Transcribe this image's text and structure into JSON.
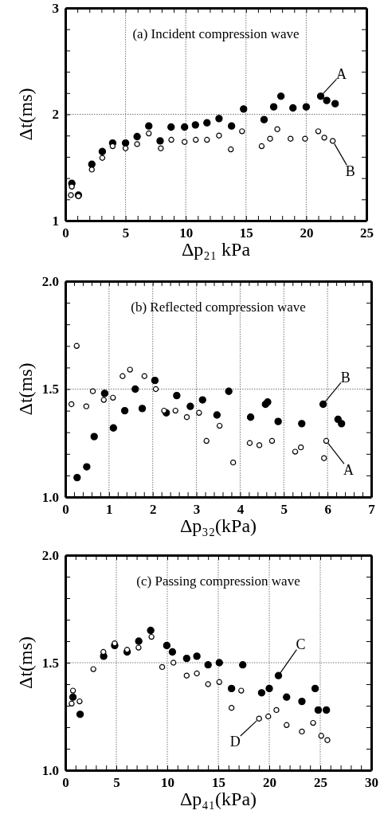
{
  "chart_data": [
    {
      "type": "scatter",
      "title": "(a) Incident compression wave",
      "xlabel": "Δp₂₁ kPa",
      "ylabel": "Δt(ms)",
      "xlim": [
        0,
        25
      ],
      "xticks": [
        0,
        {
          "value": 1,
          "label": null
        },
        {
          "value": 2,
          "label": null
        },
        {
          "value": 3,
          "label": null
        },
        {
          "value": 4,
          "label": null
        },
        5,
        {
          "value": 6,
          "label": null
        },
        {
          "value": 7,
          "label": null
        },
        {
          "value": 8,
          "label": null
        },
        {
          "value": 9,
          "label": null
        },
        10,
        {
          "value": 11,
          "label": null
        },
        {
          "value": 12,
          "label": null
        },
        {
          "value": 13,
          "label": null
        },
        {
          "value": 14,
          "label": null
        },
        15,
        {
          "value": 16,
          "label": null
        },
        {
          "value": 17,
          "label": null
        },
        {
          "value": 18,
          "label": null
        },
        {
          "value": 19,
          "label": null
        },
        20,
        {
          "value": 21,
          "label": null
        },
        {
          "value": 22,
          "label": null
        },
        {
          "value": 23,
          "label": null
        },
        {
          "value": 24,
          "label": null
        },
        25
      ],
      "ylim": [
        1,
        3
      ],
      "yticks": [
        1,
        {
          "value": 1.2,
          "label": null
        },
        {
          "value": 1.4,
          "label": null
        },
        {
          "value": 1.6,
          "label": null
        },
        {
          "value": 1.8,
          "label": null
        },
        2,
        {
          "value": 2.2,
          "label": null
        },
        {
          "value": 2.4,
          "label": null
        },
        {
          "value": 2.6,
          "label": null
        },
        {
          "value": 2.8,
          "label": null
        },
        3
      ],
      "grid": true,
      "marker": "circle",
      "series": [
        {
          "color": "#000000",
          "x": [
            0.54,
            1.09,
            2.2,
            3.07,
            3.93,
            5.0,
            5.96,
            6.93,
            7.87,
            8.78,
            9.9,
            10.8,
            11.76,
            12.76,
            13.8,
            14.8,
            16.5,
            17.3,
            17.9,
            18.9,
            20.0,
            21.2,
            21.7,
            22.4
          ],
          "values": [
            1.35,
            1.24,
            1.53,
            1.65,
            1.73,
            1.73,
            1.79,
            1.89,
            1.75,
            1.88,
            1.88,
            1.9,
            1.92,
            1.96,
            1.89,
            2.05,
            1.95,
            2.07,
            2.17,
            2.06,
            2.07,
            2.17,
            2.13,
            2.1
          ]
        },
        {
          "color": "#ffffff",
          "x": [
            0.46,
            0.54,
            1.09,
            2.2,
            3.07,
            3.93,
            5.0,
            5.96,
            6.93,
            7.93,
            8.8,
            9.9,
            10.83,
            11.76,
            12.76,
            13.74,
            14.67,
            16.3,
            17.0,
            17.6,
            18.7,
            19.9,
            21.0,
            21.5,
            22.2
          ],
          "values": [
            1.24,
            1.32,
            1.23,
            1.48,
            1.59,
            1.7,
            1.68,
            1.72,
            1.82,
            1.68,
            1.76,
            1.74,
            1.76,
            1.76,
            1.8,
            1.67,
            1.84,
            1.7,
            1.77,
            1.86,
            1.77,
            1.77,
            1.84,
            1.78,
            1.75
          ]
        }
      ],
      "annotations": [
        {
          "text": "A",
          "x": 21.2,
          "y": 2.17
        },
        {
          "text": "B",
          "x": 22.2,
          "y": 1.75
        }
      ]
    },
    {
      "type": "scatter",
      "title": "(b) Reflected compression wave",
      "xlabel": "Δp₃₂(kPa)",
      "ylabel": "Δt(ms)",
      "xlim": [
        0,
        7
      ],
      "xticks": [
        0,
        {
          "value": 0.2,
          "label": null
        },
        {
          "value": 0.4,
          "label": null
        },
        {
          "value": 0.6,
          "label": null
        },
        {
          "value": 0.8,
          "label": null
        },
        1,
        {
          "value": 1.2,
          "label": null
        },
        {
          "value": 1.4,
          "label": null
        },
        {
          "value": 1.6,
          "label": null
        },
        {
          "value": 1.8,
          "label": null
        },
        2,
        {
          "value": 2.2,
          "label": null
        },
        {
          "value": 2.4,
          "label": null
        },
        {
          "value": 2.6,
          "label": null
        },
        {
          "value": 2.8,
          "label": null
        },
        3,
        {
          "value": 3.2,
          "label": null
        },
        {
          "value": 3.4,
          "label": null
        },
        {
          "value": 3.6,
          "label": null
        },
        {
          "value": 3.8,
          "label": null
        },
        4,
        {
          "value": 4.2,
          "label": null
        },
        {
          "value": 4.4,
          "label": null
        },
        {
          "value": 4.6,
          "label": null
        },
        {
          "value": 4.8,
          "label": null
        },
        5,
        {
          "value": 5.2,
          "label": null
        },
        {
          "value": 5.4,
          "label": null
        },
        {
          "value": 5.6,
          "label": null
        },
        {
          "value": 5.8,
          "label": null
        },
        6,
        {
          "value": 6.2,
          "label": null
        },
        {
          "value": 6.4,
          "label": null
        },
        {
          "value": 6.6,
          "label": null
        },
        {
          "value": 6.8,
          "label": null
        },
        7
      ],
      "ylim": [
        1,
        2
      ],
      "yticks": [
        {
          "value": 1,
          "label": "1.0"
        },
        {
          "value": 1.1,
          "label": null
        },
        {
          "value": 1.2,
          "label": null
        },
        {
          "value": 1.3,
          "label": null
        },
        {
          "value": 1.4,
          "label": null
        },
        1.5,
        {
          "value": 1.6,
          "label": null
        },
        {
          "value": 1.7,
          "label": null
        },
        {
          "value": 1.8,
          "label": null
        },
        {
          "value": 1.9,
          "label": null
        },
        {
          "value": 2,
          "label": "2.0"
        }
      ],
      "grid": true,
      "marker": "circle",
      "series": [
        {
          "color": "#000000",
          "x": [
            0.27,
            0.49,
            0.66,
            0.9,
            1.1,
            1.36,
            1.6,
            1.76,
            2.05,
            2.31,
            2.55,
            2.86,
            3.14,
            3.47,
            3.74,
            4.24,
            4.58,
            4.63,
            4.87,
            5.41,
            5.9,
            6.24,
            6.32
          ],
          "values": [
            1.09,
            1.14,
            1.28,
            1.48,
            1.32,
            1.4,
            1.5,
            1.41,
            1.54,
            1.39,
            1.47,
            1.42,
            1.45,
            1.38,
            1.49,
            1.37,
            1.43,
            1.44,
            1.35,
            1.34,
            1.43,
            1.36,
            1.34
          ]
        },
        {
          "color": "#ffffff",
          "x": [
            0.14,
            0.26,
            0.48,
            0.63,
            0.88,
            1.09,
            1.31,
            1.48,
            1.81,
            2.07,
            2.26,
            2.52,
            2.78,
            3.06,
            3.23,
            3.53,
            3.84,
            4.22,
            4.44,
            4.73,
            5.26,
            5.39,
            5.92,
            5.97
          ],
          "values": [
            1.43,
            1.7,
            1.42,
            1.49,
            1.45,
            1.46,
            1.56,
            1.59,
            1.56,
            1.5,
            1.4,
            1.4,
            1.37,
            1.39,
            1.26,
            1.33,
            1.16,
            1.25,
            1.24,
            1.26,
            1.21,
            1.23,
            1.18,
            1.26
          ]
        }
      ],
      "annotations": [
        {
          "text": "B",
          "x": 5.9,
          "y": 1.43
        },
        {
          "text": "A",
          "x": 5.97,
          "y": 1.26
        }
      ]
    },
    {
      "type": "scatter",
      "title": "(c) Passing compression wave",
      "xlabel": "Δp₄₁(kPa)",
      "ylabel": "Δt(ms)",
      "xlim": [
        0,
        30
      ],
      "xticks": [
        0,
        {
          "value": 1,
          "label": null
        },
        {
          "value": 2,
          "label": null
        },
        {
          "value": 3,
          "label": null
        },
        {
          "value": 4,
          "label": null
        },
        5,
        {
          "value": 6,
          "label": null
        },
        {
          "value": 7,
          "label": null
        },
        {
          "value": 8,
          "label": null
        },
        {
          "value": 9,
          "label": null
        },
        10,
        {
          "value": 11,
          "label": null
        },
        {
          "value": 12,
          "label": null
        },
        {
          "value": 13,
          "label": null
        },
        {
          "value": 14,
          "label": null
        },
        15,
        {
          "value": 16,
          "label": null
        },
        {
          "value": 17,
          "label": null
        },
        {
          "value": 18,
          "label": null
        },
        {
          "value": 19,
          "label": null
        },
        20,
        {
          "value": 21,
          "label": null
        },
        {
          "value": 22,
          "label": null
        },
        {
          "value": 23,
          "label": null
        },
        {
          "value": 24,
          "label": null
        },
        25,
        {
          "value": 26,
          "label": null
        },
        {
          "value": 27,
          "label": null
        },
        {
          "value": 28,
          "label": null
        },
        {
          "value": 29,
          "label": null
        },
        30
      ],
      "ylim": [
        1,
        2
      ],
      "yticks": [
        {
          "value": 1,
          "label": "1.0"
        },
        {
          "value": 1.1,
          "label": null
        },
        {
          "value": 1.2,
          "label": null
        },
        {
          "value": 1.3,
          "label": null
        },
        {
          "value": 1.4,
          "label": null
        },
        1.5,
        {
          "value": 1.6,
          "label": null
        },
        {
          "value": 1.7,
          "label": null
        },
        {
          "value": 1.8,
          "label": null
        },
        {
          "value": 1.9,
          "label": null
        },
        {
          "value": 2,
          "label": "2.0"
        }
      ],
      "grid": true,
      "marker": "circle",
      "series": [
        {
          "color": "#000000",
          "x": [
            0.75,
            1.45,
            3.76,
            4.84,
            6.06,
            7.2,
            8.37,
            9.95,
            10.5,
            11.9,
            12.9,
            14.0,
            15.1,
            16.3,
            17.4,
            19.25,
            20.0,
            20.9,
            21.7,
            23.2,
            24.5,
            24.8,
            25.6
          ],
          "values": [
            1.34,
            1.26,
            1.53,
            1.58,
            1.55,
            1.6,
            1.65,
            1.58,
            1.55,
            1.52,
            1.53,
            1.49,
            1.5,
            1.38,
            1.49,
            1.36,
            1.38,
            1.44,
            1.34,
            1.32,
            1.38,
            1.28,
            1.28
          ]
        },
        {
          "color": "#ffffff",
          "x": [
            0.62,
            0.75,
            1.4,
            2.75,
            3.73,
            4.84,
            6.06,
            7.18,
            8.45,
            9.5,
            10.6,
            11.9,
            12.9,
            14.0,
            15.1,
            16.3,
            17.25,
            19.0,
            19.9,
            20.7,
            21.7,
            23.2,
            24.3,
            25.1,
            25.7
          ],
          "values": [
            1.31,
            1.37,
            1.32,
            1.47,
            1.55,
            1.59,
            1.56,
            1.57,
            1.62,
            1.48,
            1.5,
            1.44,
            1.45,
            1.4,
            1.41,
            1.29,
            1.37,
            1.24,
            1.25,
            1.28,
            1.21,
            1.18,
            1.22,
            1.16,
            1.14
          ]
        }
      ],
      "annotations": [
        {
          "text": "C",
          "x": 20.9,
          "y": 1.44
        },
        {
          "text": "D",
          "x": 19.0,
          "y": 1.24
        }
      ]
    }
  ]
}
